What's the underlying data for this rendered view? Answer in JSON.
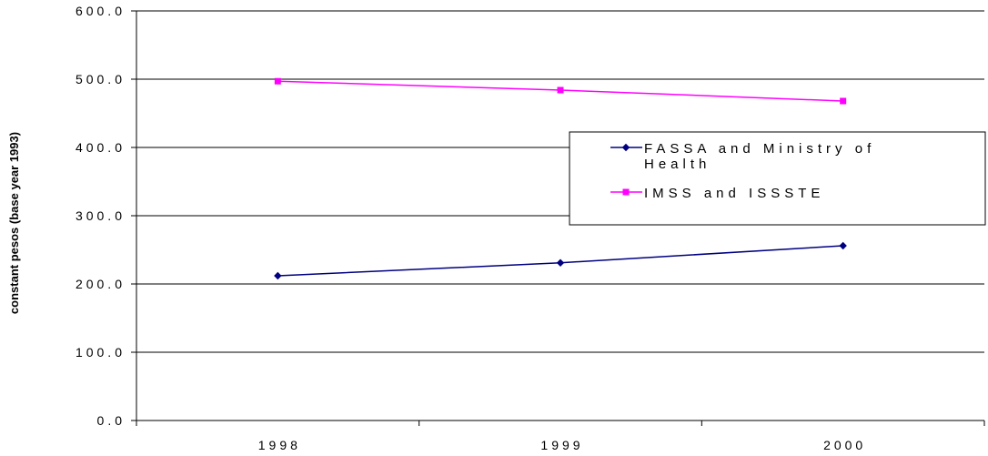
{
  "chart_data": {
    "type": "line",
    "title": "",
    "xlabel": "",
    "ylabel": "constant pesos (base year 1993)",
    "categories": [
      "1998",
      "1999",
      "2000"
    ],
    "ylim": [
      0,
      600
    ],
    "yticks": [
      0,
      100,
      200,
      300,
      400,
      500,
      600
    ],
    "ytick_labels": [
      "0.0",
      "100.0",
      "200.0",
      "300.0",
      "400.0",
      "500.0",
      "600.0"
    ],
    "grid": true,
    "legend_position": "right",
    "series": [
      {
        "name": "FASSA and Ministry of Health",
        "legend_lines": [
          "FASSA and Ministry of",
          "Health"
        ],
        "values": [
          212,
          231,
          256
        ],
        "color": "#000080",
        "marker": "diamond"
      },
      {
        "name": "IMSS and ISSSTE",
        "legend_lines": [
          "IMSS and ISSSTE"
        ],
        "values": [
          497,
          484,
          468
        ],
        "color": "#ff00ff",
        "marker": "square"
      }
    ]
  }
}
